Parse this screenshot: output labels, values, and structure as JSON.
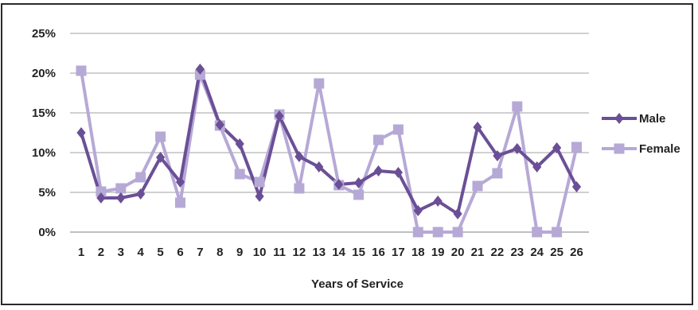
{
  "chart_data": {
    "type": "line",
    "title": "",
    "xlabel": "Years of Service",
    "ylabel": "",
    "categories": [
      "1",
      "2",
      "3",
      "4",
      "5",
      "6",
      "7",
      "8",
      "9",
      "10",
      "11",
      "12",
      "13",
      "14",
      "15",
      "16",
      "17",
      "18",
      "19",
      "20",
      "21",
      "22",
      "23",
      "24",
      "25",
      "26"
    ],
    "y_ticks": [
      "0%",
      "5%",
      "10%",
      "15%",
      "20%",
      "25%"
    ],
    "ylim": [
      0,
      25
    ],
    "grid": true,
    "legend": "right",
    "series": [
      {
        "name": "Male",
        "marker": "diamond",
        "color": "#6b4f96",
        "values": [
          12.5,
          4.3,
          4.3,
          4.8,
          9.4,
          6.3,
          20.5,
          13.5,
          11.1,
          4.5,
          14.6,
          9.5,
          8.2,
          6.0,
          6.2,
          7.7,
          7.5,
          2.7,
          3.9,
          2.3,
          13.2,
          9.6,
          10.5,
          8.2,
          10.6,
          5.7
        ]
      },
      {
        "name": "Female",
        "marker": "square",
        "color": "#b6a9d6",
        "values": [
          20.3,
          5.1,
          5.5,
          6.9,
          12.0,
          3.7,
          19.8,
          13.4,
          7.3,
          6.3,
          14.8,
          5.5,
          18.7,
          5.9,
          4.7,
          11.6,
          12.9,
          0,
          0,
          0,
          5.8,
          7.4,
          15.8,
          0,
          0,
          10.7
        ]
      }
    ]
  }
}
